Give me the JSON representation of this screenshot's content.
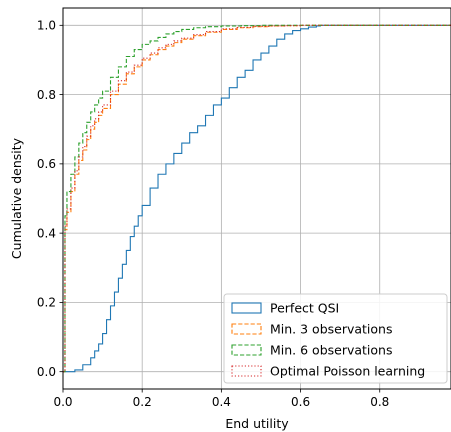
{
  "chart_data": {
    "type": "step",
    "title": "",
    "xlabel": "End utility",
    "ylabel": "Cumulative density",
    "xlim": [
      0.0,
      0.98
    ],
    "ylim": [
      -0.05,
      1.05
    ],
    "xticks": [
      0.0,
      0.2,
      0.4,
      0.6,
      0.8
    ],
    "xtick_labels": [
      "0.0",
      "0.2",
      "0.4",
      "0.6",
      "0.8"
    ],
    "yticks": [
      0.0,
      0.2,
      0.4,
      0.6,
      0.8,
      1.0
    ],
    "ytick_labels": [
      "0.0",
      "0.2",
      "0.4",
      "0.6",
      "0.8",
      "1.0"
    ],
    "grid": true,
    "legend_position": "lower-right",
    "series": [
      {
        "name": "Perfect QSI",
        "color": "#1f77b4",
        "linestyle": "solid",
        "x": [
          0.0,
          0.03,
          0.05,
          0.07,
          0.08,
          0.09,
          0.1,
          0.11,
          0.12,
          0.13,
          0.14,
          0.15,
          0.16,
          0.17,
          0.18,
          0.19,
          0.2,
          0.22,
          0.24,
          0.26,
          0.28,
          0.3,
          0.32,
          0.34,
          0.36,
          0.38,
          0.4,
          0.42,
          0.44,
          0.46,
          0.48,
          0.5,
          0.52,
          0.54,
          0.56,
          0.58,
          0.6,
          0.62,
          0.64,
          0.65,
          0.98
        ],
        "y": [
          0.0,
          0.005,
          0.02,
          0.04,
          0.06,
          0.08,
          0.11,
          0.15,
          0.19,
          0.23,
          0.27,
          0.31,
          0.35,
          0.39,
          0.42,
          0.45,
          0.48,
          0.53,
          0.57,
          0.6,
          0.63,
          0.66,
          0.69,
          0.71,
          0.74,
          0.77,
          0.79,
          0.82,
          0.85,
          0.87,
          0.9,
          0.92,
          0.94,
          0.96,
          0.975,
          0.985,
          0.99,
          0.995,
          0.998,
          1.0,
          1.0
        ]
      },
      {
        "name": "Min. 3 observations",
        "color": "#ff7f0e",
        "linestyle": "dashed",
        "x": [
          0.0,
          0.005,
          0.01,
          0.02,
          0.03,
          0.04,
          0.05,
          0.06,
          0.07,
          0.08,
          0.09,
          0.1,
          0.12,
          0.14,
          0.16,
          0.18,
          0.2,
          0.22,
          0.24,
          0.26,
          0.28,
          0.3,
          0.33,
          0.36,
          0.4,
          0.44,
          0.48,
          0.52,
          0.56,
          0.6,
          0.65,
          0.98
        ],
        "y": [
          0.0,
          0.41,
          0.46,
          0.52,
          0.57,
          0.61,
          0.64,
          0.67,
          0.7,
          0.72,
          0.74,
          0.76,
          0.8,
          0.83,
          0.86,
          0.88,
          0.9,
          0.915,
          0.93,
          0.94,
          0.95,
          0.96,
          0.97,
          0.98,
          0.988,
          0.993,
          0.996,
          0.998,
          0.999,
          1.0,
          1.0,
          1.0
        ]
      },
      {
        "name": "Min. 6 observations",
        "color": "#2ca02c",
        "linestyle": "dashed",
        "x": [
          0.0,
          0.005,
          0.01,
          0.02,
          0.03,
          0.04,
          0.05,
          0.06,
          0.07,
          0.08,
          0.09,
          0.1,
          0.12,
          0.14,
          0.16,
          0.18,
          0.2,
          0.22,
          0.24,
          0.26,
          0.28,
          0.3,
          0.33,
          0.36,
          0.4,
          0.45,
          0.5,
          0.55,
          0.6,
          0.98
        ],
        "y": [
          0.0,
          0.45,
          0.52,
          0.57,
          0.62,
          0.66,
          0.69,
          0.72,
          0.75,
          0.77,
          0.79,
          0.81,
          0.85,
          0.88,
          0.91,
          0.93,
          0.945,
          0.955,
          0.965,
          0.975,
          0.982,
          0.988,
          0.993,
          0.996,
          0.998,
          0.999,
          1.0,
          1.0,
          1.0,
          1.0
        ]
      },
      {
        "name": "Optimal Poisson learning",
        "color": "#d62728",
        "linestyle": "dotted",
        "x": [
          0.0,
          0.005,
          0.01,
          0.02,
          0.03,
          0.04,
          0.05,
          0.06,
          0.07,
          0.08,
          0.09,
          0.1,
          0.12,
          0.14,
          0.16,
          0.18,
          0.2,
          0.22,
          0.24,
          0.26,
          0.28,
          0.3,
          0.33,
          0.36,
          0.4,
          0.44,
          0.48,
          0.52,
          0.56,
          0.6,
          0.65,
          0.98
        ],
        "y": [
          0.0,
          0.42,
          0.47,
          0.53,
          0.58,
          0.62,
          0.65,
          0.68,
          0.71,
          0.73,
          0.75,
          0.77,
          0.81,
          0.84,
          0.865,
          0.885,
          0.905,
          0.92,
          0.935,
          0.945,
          0.955,
          0.963,
          0.973,
          0.982,
          0.99,
          0.994,
          0.997,
          0.998,
          0.999,
          1.0,
          1.0,
          1.0
        ]
      }
    ]
  }
}
